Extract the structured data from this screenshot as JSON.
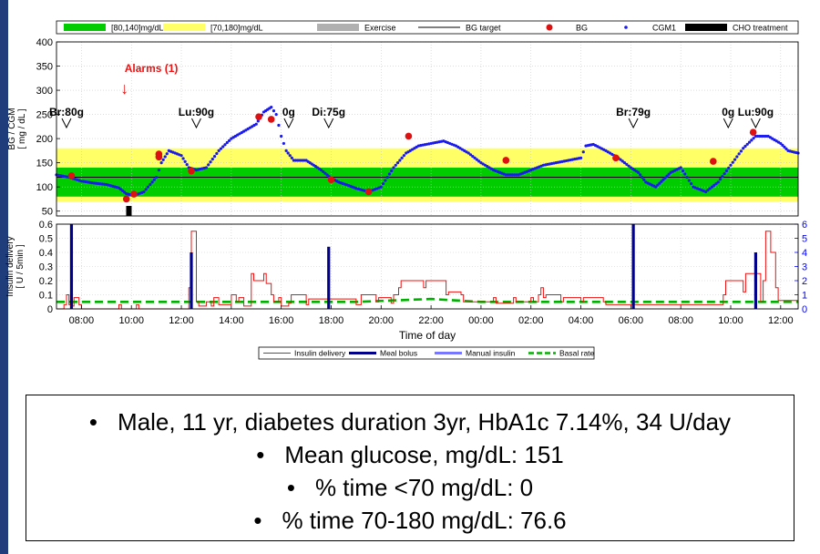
{
  "colors": {
    "in_range_80_140": "#00cc00",
    "in_range_70_180": "#ffff66",
    "exercise": "#b0b0b0",
    "bg_target": "#000000",
    "bg_points": "#dd1111",
    "cgm": "#1a1aee",
    "cho_treatment": "#000000",
    "insulin_delivery": "#ee1111",
    "meal_bolus": "#00008b",
    "manual_insulin": "#7777ff",
    "basal_rate": "#00b000",
    "right_axis": "#0000ff",
    "alarm": "#ee1111"
  },
  "legend_top": [
    {
      "label": "[80,140]mg/dL",
      "kind": "patch",
      "color": "#00cc00"
    },
    {
      "label": "[70,180]mg/dL",
      "kind": "patch",
      "color": "#ffff66"
    },
    {
      "label": "Exercise",
      "kind": "patch",
      "color": "#b0b0b0"
    },
    {
      "label": "BG target",
      "kind": "line",
      "color": "#000000"
    },
    {
      "label": "BG",
      "kind": "dot",
      "color": "#dd1111"
    },
    {
      "label": "CGM1",
      "kind": "smalldot",
      "color": "#1a1aee"
    },
    {
      "label": "CHO treatment",
      "kind": "bar",
      "color": "#000000"
    }
  ],
  "legend_bottom": [
    {
      "label": "Insulin delivery",
      "kind": "line",
      "color": "#ee1111"
    },
    {
      "label": "Meal bolus",
      "kind": "thick",
      "color": "#00008b"
    },
    {
      "label": "Manual insulin",
      "kind": "thick",
      "color": "#7777ff"
    },
    {
      "label": "Basal rate",
      "kind": "dash",
      "color": "#00b000"
    }
  ],
  "annotations": {
    "alarm_label": "Alarms (1)",
    "alarm_arrow": "↓",
    "alarm_hour": 9.8,
    "meals": [
      {
        "label": "Br:80g",
        "hour": 7.4
      },
      {
        "label": "Lu:90g",
        "hour": 12.6
      },
      {
        "label": "0g",
        "hour": 16.3
      },
      {
        "label": "Di:75g",
        "hour": 17.9
      },
      {
        "label": "Br:79g",
        "hour": 30.1
      },
      {
        "label": "0g",
        "hour": 33.9
      },
      {
        "label": "Lu:90g",
        "hour": 35.0
      }
    ]
  },
  "chart_data": [
    {
      "type": "scatter",
      "ylabel": "BG / CGM\n[ mg / dL ]",
      "ylim": [
        40,
        400
      ],
      "xlim": [
        7.0,
        36.7
      ],
      "yticks": [
        50,
        100,
        150,
        200,
        250,
        300,
        350,
        400
      ],
      "bands": [
        {
          "name": "[70,180]mg/dL",
          "range": [
            70,
            180
          ]
        },
        {
          "name": "[80,140]mg/dL",
          "range": [
            80,
            140
          ]
        }
      ],
      "bg_target": 120,
      "cgm": {
        "name": "CGM1",
        "x": [
          7.0,
          7.5,
          8.0,
          8.5,
          9.0,
          9.5,
          9.8,
          10.1,
          10.5,
          11.0,
          11.2,
          11.5,
          12.0,
          12.3,
          12.6,
          13.0,
          13.5,
          14.0,
          14.5,
          15.0,
          15.3,
          15.6,
          15.8,
          16.0,
          16.2,
          16.5,
          17.0,
          17.3,
          17.6,
          18.0,
          18.3,
          18.7,
          19.0,
          19.5,
          20.0,
          20.5,
          21.0,
          21.5,
          22.0,
          22.5,
          23.0,
          23.5,
          24.0,
          24.5,
          25.0,
          25.5,
          26.0,
          26.5,
          27.0,
          27.5,
          28.0,
          28.2,
          28.5,
          29.0,
          29.5,
          30.0,
          30.3,
          30.6,
          31.0,
          31.3,
          31.6,
          32.0,
          32.5,
          33.0,
          33.5,
          34.0,
          34.5,
          35.0,
          35.5,
          36.0,
          36.3,
          36.7
        ],
        "y": [
          125,
          120,
          112,
          108,
          105,
          98,
          86,
          82,
          90,
          120,
          150,
          175,
          165,
          140,
          135,
          140,
          175,
          200,
          215,
          230,
          255,
          265,
          250,
          205,
          175,
          155,
          155,
          145,
          135,
          118,
          110,
          103,
          97,
          90,
          100,
          140,
          170,
          185,
          190,
          195,
          185,
          170,
          150,
          135,
          125,
          125,
          135,
          145,
          150,
          155,
          160,
          185,
          188,
          175,
          160,
          140,
          130,
          110,
          100,
          115,
          130,
          140,
          100,
          90,
          110,
          145,
          180,
          205,
          205,
          190,
          175,
          170
        ]
      },
      "bg": {
        "name": "BG",
        "x": [
          7.6,
          9.8,
          10.1,
          11.1,
          11.1,
          12.4,
          15.1,
          15.6,
          18.0,
          19.5,
          21.1,
          25.0,
          29.4,
          33.3,
          34.9
        ],
        "y": [
          123,
          75,
          85,
          168,
          162,
          133,
          245,
          240,
          115,
          90,
          205,
          155,
          160,
          153,
          213
        ]
      },
      "cho_treatment": [
        {
          "hour": 9.9,
          "label": ""
        }
      ]
    },
    {
      "type": "line",
      "xlabel": "Time of day",
      "ylabel": "Insulin delivery\n[ U / 5min ]",
      "ylim": [
        0,
        0.6
      ],
      "yticks": [
        0,
        0.1,
        0.2,
        0.3,
        0.4,
        0.5,
        0.6
      ],
      "y2lim": [
        0,
        6
      ],
      "y2ticks": [
        0,
        1,
        2,
        3,
        4,
        5,
        6
      ],
      "xtick_hours": [
        8,
        10,
        12,
        14,
        16,
        18,
        20,
        22,
        24,
        26,
        28,
        30,
        32,
        34,
        36
      ],
      "xtick_labels": [
        "08:00",
        "10:00",
        "12:00",
        "14:00",
        "16:00",
        "18:00",
        "20:00",
        "22:00",
        "00:00",
        "02:00",
        "04:00",
        "06:00",
        "08:00",
        "10:00",
        "12:00"
      ],
      "basal_rate": {
        "name": "Basal rate",
        "x": [
          7.0,
          12.0,
          17.0,
          19.0,
          22.0,
          24.0,
          29.0,
          32.0,
          36.7
        ],
        "y": [
          0.05,
          0.05,
          0.05,
          0.05,
          0.07,
          0.05,
          0.05,
          0.05,
          0.05
        ]
      },
      "insulin_delivery": {
        "name": "Insulin delivery",
        "x": [
          7.0,
          7.3,
          7.4,
          7.5,
          7.6,
          7.7,
          7.9,
          8.0,
          9.5,
          9.6,
          10.2,
          10.3,
          12.3,
          12.4,
          12.6,
          12.7,
          13.0,
          13.2,
          13.3,
          13.5,
          14.0,
          14.2,
          14.3,
          14.5,
          14.8,
          14.9,
          15.3,
          15.4,
          15.6,
          15.7,
          15.9,
          16.0,
          16.3,
          16.4,
          17.0,
          17.1,
          19.0,
          19.2,
          19.8,
          19.9,
          20.4,
          20.5,
          20.7,
          20.8,
          21.7,
          21.8,
          22.6,
          22.7,
          23.2,
          23.3,
          24.5,
          24.6,
          25.3,
          25.4,
          26.0,
          26.1,
          26.3,
          26.4,
          26.5,
          26.6,
          27.2,
          27.3,
          28.0,
          28.1,
          28.9,
          29.0,
          33.7,
          33.8,
          34.5,
          34.6,
          35.2,
          35.3,
          35.4,
          35.6,
          35.8,
          35.9,
          36.7
        ],
        "y": [
          0,
          0.03,
          0.1,
          0.03,
          0.02,
          0.08,
          0.03,
          0,
          0.03,
          0,
          0.03,
          0,
          0.15,
          0.55,
          0.05,
          0.02,
          0.05,
          0.02,
          0.08,
          0.03,
          0.1,
          0.05,
          0.08,
          0.02,
          0.25,
          0.2,
          0.25,
          0.18,
          0.1,
          0.05,
          0.08,
          0.02,
          0.04,
          0.1,
          0.03,
          0.07,
          0.03,
          0.1,
          0.05,
          0.08,
          0.04,
          0.1,
          0.15,
          0.2,
          0.15,
          0.2,
          0.1,
          0.12,
          0.1,
          0.05,
          0.08,
          0.04,
          0.08,
          0.05,
          0.08,
          0.05,
          0.1,
          0.15,
          0.08,
          0.1,
          0.05,
          0.08,
          0.05,
          0.08,
          0.05,
          0.03,
          0.1,
          0.2,
          0.12,
          0.25,
          0.05,
          0.2,
          0.55,
          0.4,
          0.15,
          0.06,
          0.04
        ]
      },
      "meal_bolus": {
        "name": "Meal bolus",
        "x": [
          7.6,
          12.4,
          17.9,
          30.1,
          35.0
        ],
        "y": [
          6.0,
          4.0,
          4.4,
          6.0,
          4.0
        ]
      },
      "manual_insulin": {
        "name": "Manual insulin",
        "x": [],
        "y": []
      }
    }
  ],
  "summary": {
    "bullet": "•",
    "lines": [
      "Male, 11 yr, diabetes duration 3yr, HbA1c 7.14%, 34 U/day",
      "Mean glucose, mg/dL: 151",
      "% time <70 mg/dL: 0",
      "% time 70-180 mg/dL: 76.6"
    ]
  }
}
